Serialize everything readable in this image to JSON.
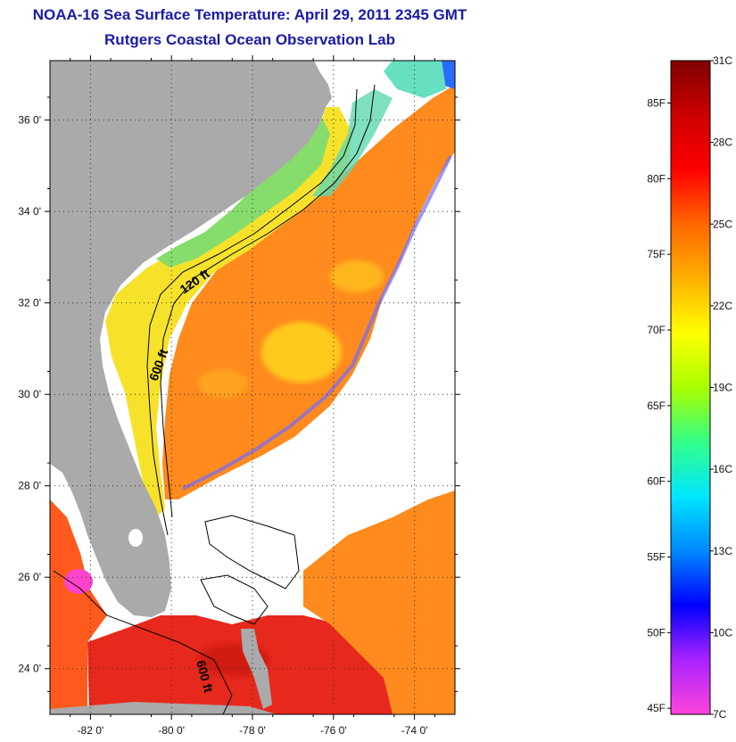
{
  "title": "NOAA-16 Sea Surface Temperature:  April 29, 2011 2345 GMT",
  "subtitle": "Rutgers Coastal Ocean Observation Lab",
  "lat_ticks": [
    {
      "value": 36,
      "label": "36 0'"
    },
    {
      "value": 34,
      "label": "34 0'"
    },
    {
      "value": 32,
      "label": "32 0'"
    },
    {
      "value": 30,
      "label": "30 0'"
    },
    {
      "value": 28,
      "label": "28 0'"
    },
    {
      "value": 26,
      "label": "26 0'"
    },
    {
      "value": 24,
      "label": "24 0'"
    }
  ],
  "lon_ticks": [
    {
      "value": -82,
      "label": "-82 0'"
    },
    {
      "value": -80,
      "label": "-80 0'"
    },
    {
      "value": -78,
      "label": "-78 0'"
    },
    {
      "value": -76,
      "label": "-76 0'"
    },
    {
      "value": -74,
      "label": "-74 0'"
    }
  ],
  "lat_range": [
    23.0,
    37.3
  ],
  "lon_range": [
    -83.0,
    -73.0
  ],
  "contour_labels": [
    "120 ft",
    "600 ft",
    "600 ft"
  ],
  "colorbar": {
    "celsius_labels": [
      "31C",
      "28C",
      "25C",
      "22C",
      "19C",
      "16C",
      "13C",
      "10C",
      "7C"
    ],
    "fahrenheit_labels": [
      "85F",
      "80F",
      "75F",
      "70F",
      "65F",
      "60F",
      "55F",
      "50F",
      "45F"
    ],
    "celsius_range": [
      7,
      31
    ],
    "colors_bottom_to_top": [
      "#ff44dd",
      "#aa22ff",
      "#0000ff",
      "#0088ff",
      "#00e6ff",
      "#33ff88",
      "#aaff00",
      "#ffff00",
      "#ffb000",
      "#ff6600",
      "#ff0000",
      "#cc0000",
      "#800000"
    ]
  },
  "colors": {
    "land": "#aaaaaa",
    "no_data": "#ffffff",
    "title": "#1a1aa8",
    "warm_gulfstream": "#ff8c1a",
    "shelf_yellow": "#f5e22a",
    "cool_shelf": "#88e06a",
    "florida_straits": "#e62b1e"
  }
}
